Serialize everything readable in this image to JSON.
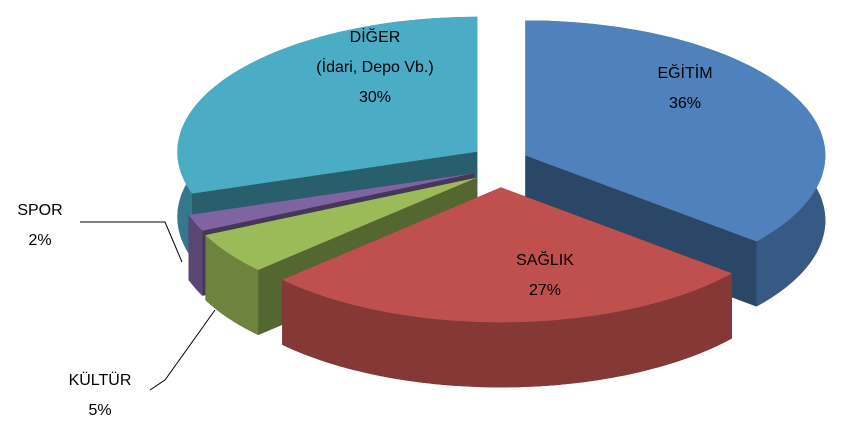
{
  "chart_data": {
    "type": "pie3d",
    "categories": [
      "EĞİTİM",
      "SAĞLIK",
      "KÜLTÜR",
      "SPOR",
      "DİĞER\n(İdari, Depo Vb.)"
    ],
    "values": [
      36,
      27,
      5,
      2,
      30
    ],
    "value_labels": [
      "36%",
      "27%",
      "5%",
      "2%",
      "30%"
    ],
    "colors": [
      "#4f81bd",
      "#c0504d",
      "#9bbb59",
      "#8064a2",
      "#4bacc6"
    ]
  }
}
